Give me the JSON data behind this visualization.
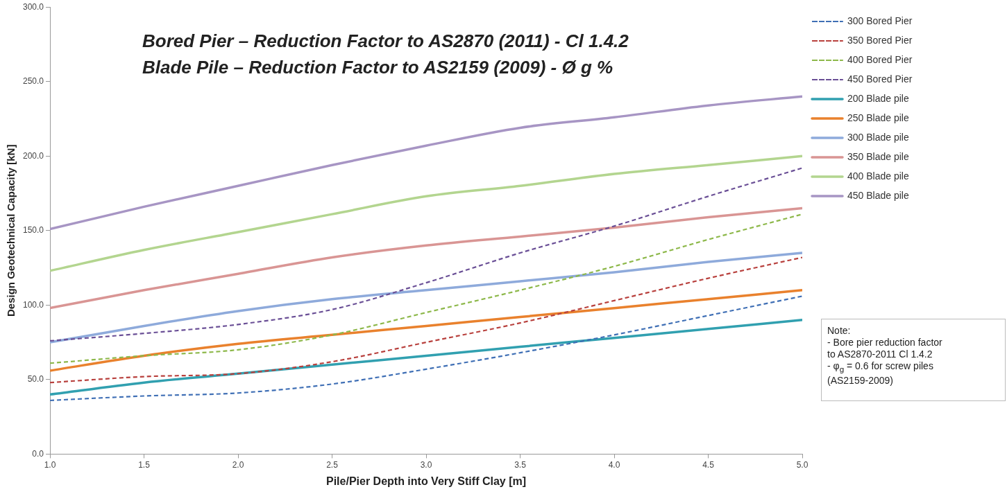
{
  "chart_data": {
    "type": "line",
    "title": "Bored Pier – Reduction Factor to AS2870 (2011) - Cl 1.4.2",
    "subtitle": "Blade Pile – Reduction Factor to AS2159 (2009) - Ø g %",
    "xlabel": "Pile/Pier Depth into Very Stiff Clay [m]",
    "ylabel": "Design Geotechnical Capacity [kN]",
    "x": [
      1.0,
      1.5,
      2.0,
      2.5,
      3.0,
      3.5,
      4.0,
      4.5,
      5.0
    ],
    "xlim": [
      1.0,
      5.0
    ],
    "xticks": [
      {
        "value": 1,
        "label": "1.0"
      },
      {
        "value": 1.5,
        "label": "1.5"
      },
      {
        "value": 2,
        "label": "2.0"
      },
      {
        "value": 2.5,
        "label": "2.5"
      },
      {
        "value": 3,
        "label": "3.0"
      },
      {
        "value": 3.5,
        "label": "3.5"
      },
      {
        "value": 4,
        "label": "4.0"
      },
      {
        "value": 4.5,
        "label": "4.5"
      },
      {
        "value": 5,
        "label": "5.0"
      }
    ],
    "ylim": [
      0,
      300
    ],
    "yticks": [
      {
        "value": 0,
        "label": "0.0"
      },
      {
        "value": 50,
        "label": "50.0"
      },
      {
        "value": 100,
        "label": "100.0"
      },
      {
        "value": 150,
        "label": "150.0"
      },
      {
        "value": 200,
        "label": "200.0"
      },
      {
        "value": 250,
        "label": "250.0"
      },
      {
        "value": 300,
        "label": "300.0"
      }
    ],
    "grid": false,
    "legend": "right",
    "marker": "none",
    "series": [
      {
        "name": "300 Bored Pier",
        "color": "#3f6fb5",
        "line_style": "dashed",
        "values": [
          36,
          39,
          41,
          47,
          57,
          68,
          80,
          93,
          106
        ]
      },
      {
        "name": "350 Bored Pier",
        "color": "#b8403d",
        "line_style": "dashed",
        "values": [
          48,
          52,
          54,
          62,
          75,
          88,
          103,
          118,
          132
        ]
      },
      {
        "name": "400 Bored Pier",
        "color": "#8db84a",
        "line_style": "dashed",
        "values": [
          61,
          66,
          70,
          80,
          95,
          110,
          126,
          144,
          161
        ]
      },
      {
        "name": "450 Bored Pier",
        "color": "#6a4f96",
        "line_style": "dashed",
        "values": [
          76,
          81,
          87,
          97,
          115,
          135,
          153,
          173,
          192
        ]
      },
      {
        "name": "200 Blade pile",
        "color": "#31a0b0",
        "line_style": "solid",
        "values": [
          40,
          48,
          54,
          60,
          66,
          72,
          78,
          84,
          90
        ]
      },
      {
        "name": "250 Blade pile",
        "color": "#e9812d",
        "line_style": "solid",
        "values": [
          56,
          66,
          74,
          80,
          86,
          92,
          98,
          104,
          110
        ]
      },
      {
        "name": "300 Blade pile",
        "color": "#8eaadb",
        "line_style": "solid",
        "values": [
          75,
          86,
          96,
          104,
          110,
          116,
          122,
          129,
          135
        ]
      },
      {
        "name": "350 Blade pile",
        "color": "#d99594",
        "line_style": "solid",
        "values": [
          98,
          110,
          121,
          132,
          140,
          146,
          152,
          159,
          165
        ]
      },
      {
        "name": "400 Blade pile",
        "color": "#b3d58f",
        "line_style": "solid",
        "values": [
          123,
          137,
          149,
          161,
          173,
          180,
          188,
          194,
          200
        ]
      },
      {
        "name": "450 Blade pile",
        "color": "#a795c4",
        "line_style": "solid",
        "values": [
          151,
          166,
          180,
          194,
          207,
          219,
          226,
          234,
          240
        ]
      }
    ],
    "annotations": [
      "Note:\n - Bore pier reduction factor\nto AS2870-2011 Cl 1.4.2\n - φ$_{g}$ = 0.6 for screw piles\n(AS2159-2009)"
    ]
  }
}
